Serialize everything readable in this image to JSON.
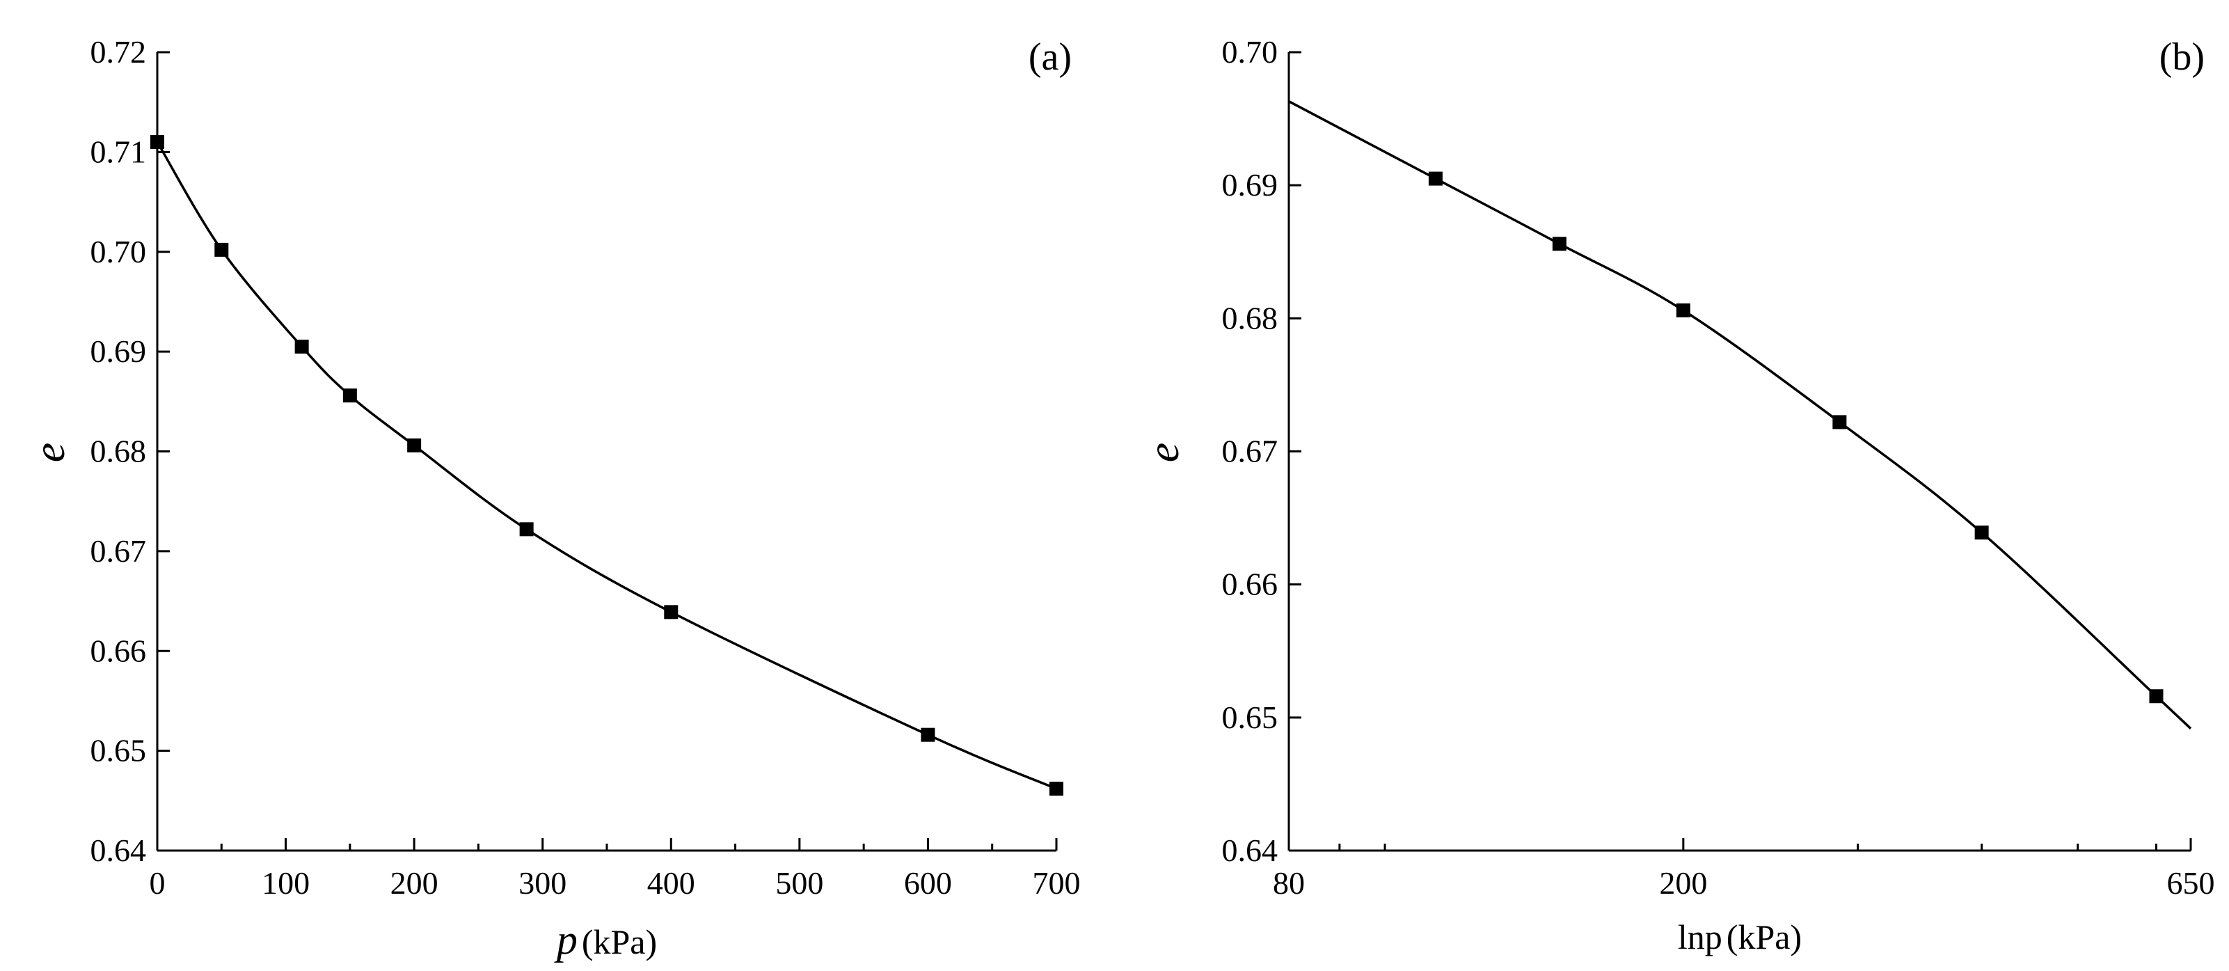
{
  "chart_data": [
    {
      "panel_label": "(a)",
      "type": "line",
      "xlabel_var": "p",
      "xlabel_unit": "(kPa)",
      "ylabel": "e",
      "xlim": [
        0,
        700
      ],
      "ylim": [
        0.64,
        0.72
      ],
      "xticks": [
        0,
        100,
        200,
        300,
        400,
        500,
        600,
        700
      ],
      "yticks": [
        0.64,
        0.65,
        0.66,
        0.67,
        0.68,
        0.69,
        0.7,
        0.71,
        0.72
      ],
      "x_tick_labels": [
        "0",
        "100",
        "200",
        "300",
        "400",
        "500",
        "600",
        "700"
      ],
      "y_tick_labels": [
        "0.64",
        "0.65",
        "0.66",
        "0.67",
        "0.68",
        "0.69",
        "0.70",
        "0.71",
        "0.72"
      ],
      "grid": false,
      "series": [
        {
          "x": [
            0,
            50,
            112.5,
            150,
            200,
            287.5,
            400,
            600,
            700
          ],
          "y": [
            0.711,
            0.7002,
            0.6905,
            0.6856,
            0.6806,
            0.6722,
            0.6639,
            0.6516,
            0.6462
          ],
          "marker": "square"
        }
      ]
    },
    {
      "panel_label": "(b)",
      "type": "line",
      "xlabel_var": "lnp",
      "xlabel_unit": "(kPa)",
      "ylabel": "e",
      "x_scale": "log",
      "xlim": [
        80,
        650
      ],
      "ylim": [
        0.64,
        0.7
      ],
      "xticks": [
        80,
        200,
        650
      ],
      "yticks": [
        0.64,
        0.65,
        0.66,
        0.67,
        0.68,
        0.69,
        0.7
      ],
      "x_tick_labels": [
        "80",
        "200",
        "650"
      ],
      "y_tick_labels": [
        "0.64",
        "0.65",
        "0.66",
        "0.67",
        "0.68",
        "0.69",
        "0.70"
      ],
      "grid": false,
      "series": [
        {
          "x": [
            112.5,
            150,
            200,
            287.5,
            400,
            600
          ],
          "y": [
            0.6905,
            0.6856,
            0.6806,
            0.6722,
            0.6639,
            0.6516
          ],
          "marker": "square"
        }
      ]
    }
  ]
}
